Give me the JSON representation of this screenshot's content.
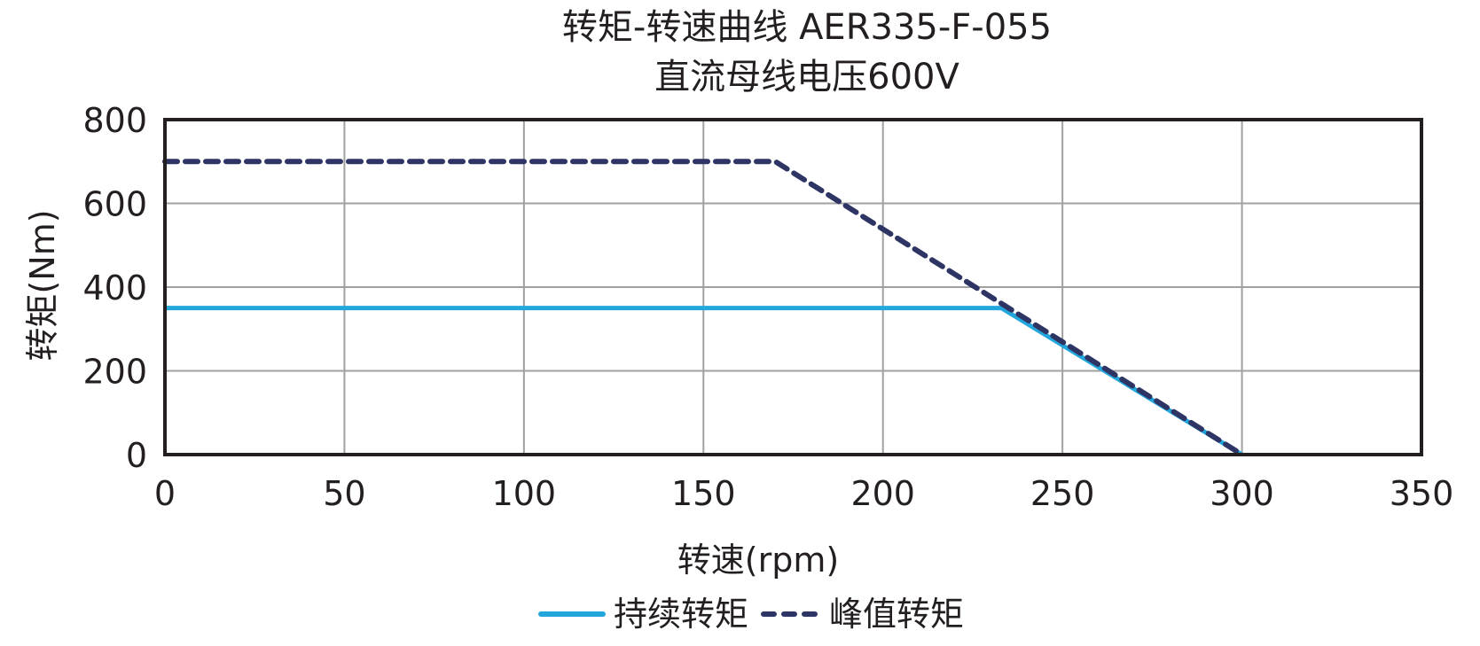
{
  "title": {
    "line1": "转矩-转速曲线 AER335-F-055",
    "line2": "直流母线电压600V"
  },
  "axes": {
    "xlabel": "转速(rpm)",
    "ylabel": "转矩(Nm)"
  },
  "legend": {
    "continuous": "持续转矩",
    "peak": "峰值转矩"
  },
  "colors": {
    "continuous": "#22a6dc",
    "peak": "#2e3565",
    "grid": "#a0a0a0",
    "frame": "#231f20"
  },
  "chart_data": {
    "type": "line",
    "title": "转矩-转速曲线 AER335-F-055 / 直流母线电压600V",
    "xlabel": "转速(rpm)",
    "ylabel": "转矩(Nm)",
    "xlim": [
      0,
      350
    ],
    "ylim": [
      0,
      800
    ],
    "xticks": [
      0,
      50,
      100,
      150,
      200,
      250,
      300,
      350
    ],
    "yticks": [
      0,
      200,
      400,
      600,
      800
    ],
    "grid": true,
    "legend_position": "bottom",
    "series": [
      {
        "name": "持续转矩",
        "style": "solid",
        "color": "#22a6dc",
        "x": [
          0,
          233,
          300
        ],
        "y": [
          350,
          350,
          0
        ]
      },
      {
        "name": "峰值转矩",
        "style": "dashed",
        "color": "#2e3565",
        "x": [
          0,
          170,
          300
        ],
        "y": [
          700,
          700,
          0
        ]
      }
    ]
  }
}
